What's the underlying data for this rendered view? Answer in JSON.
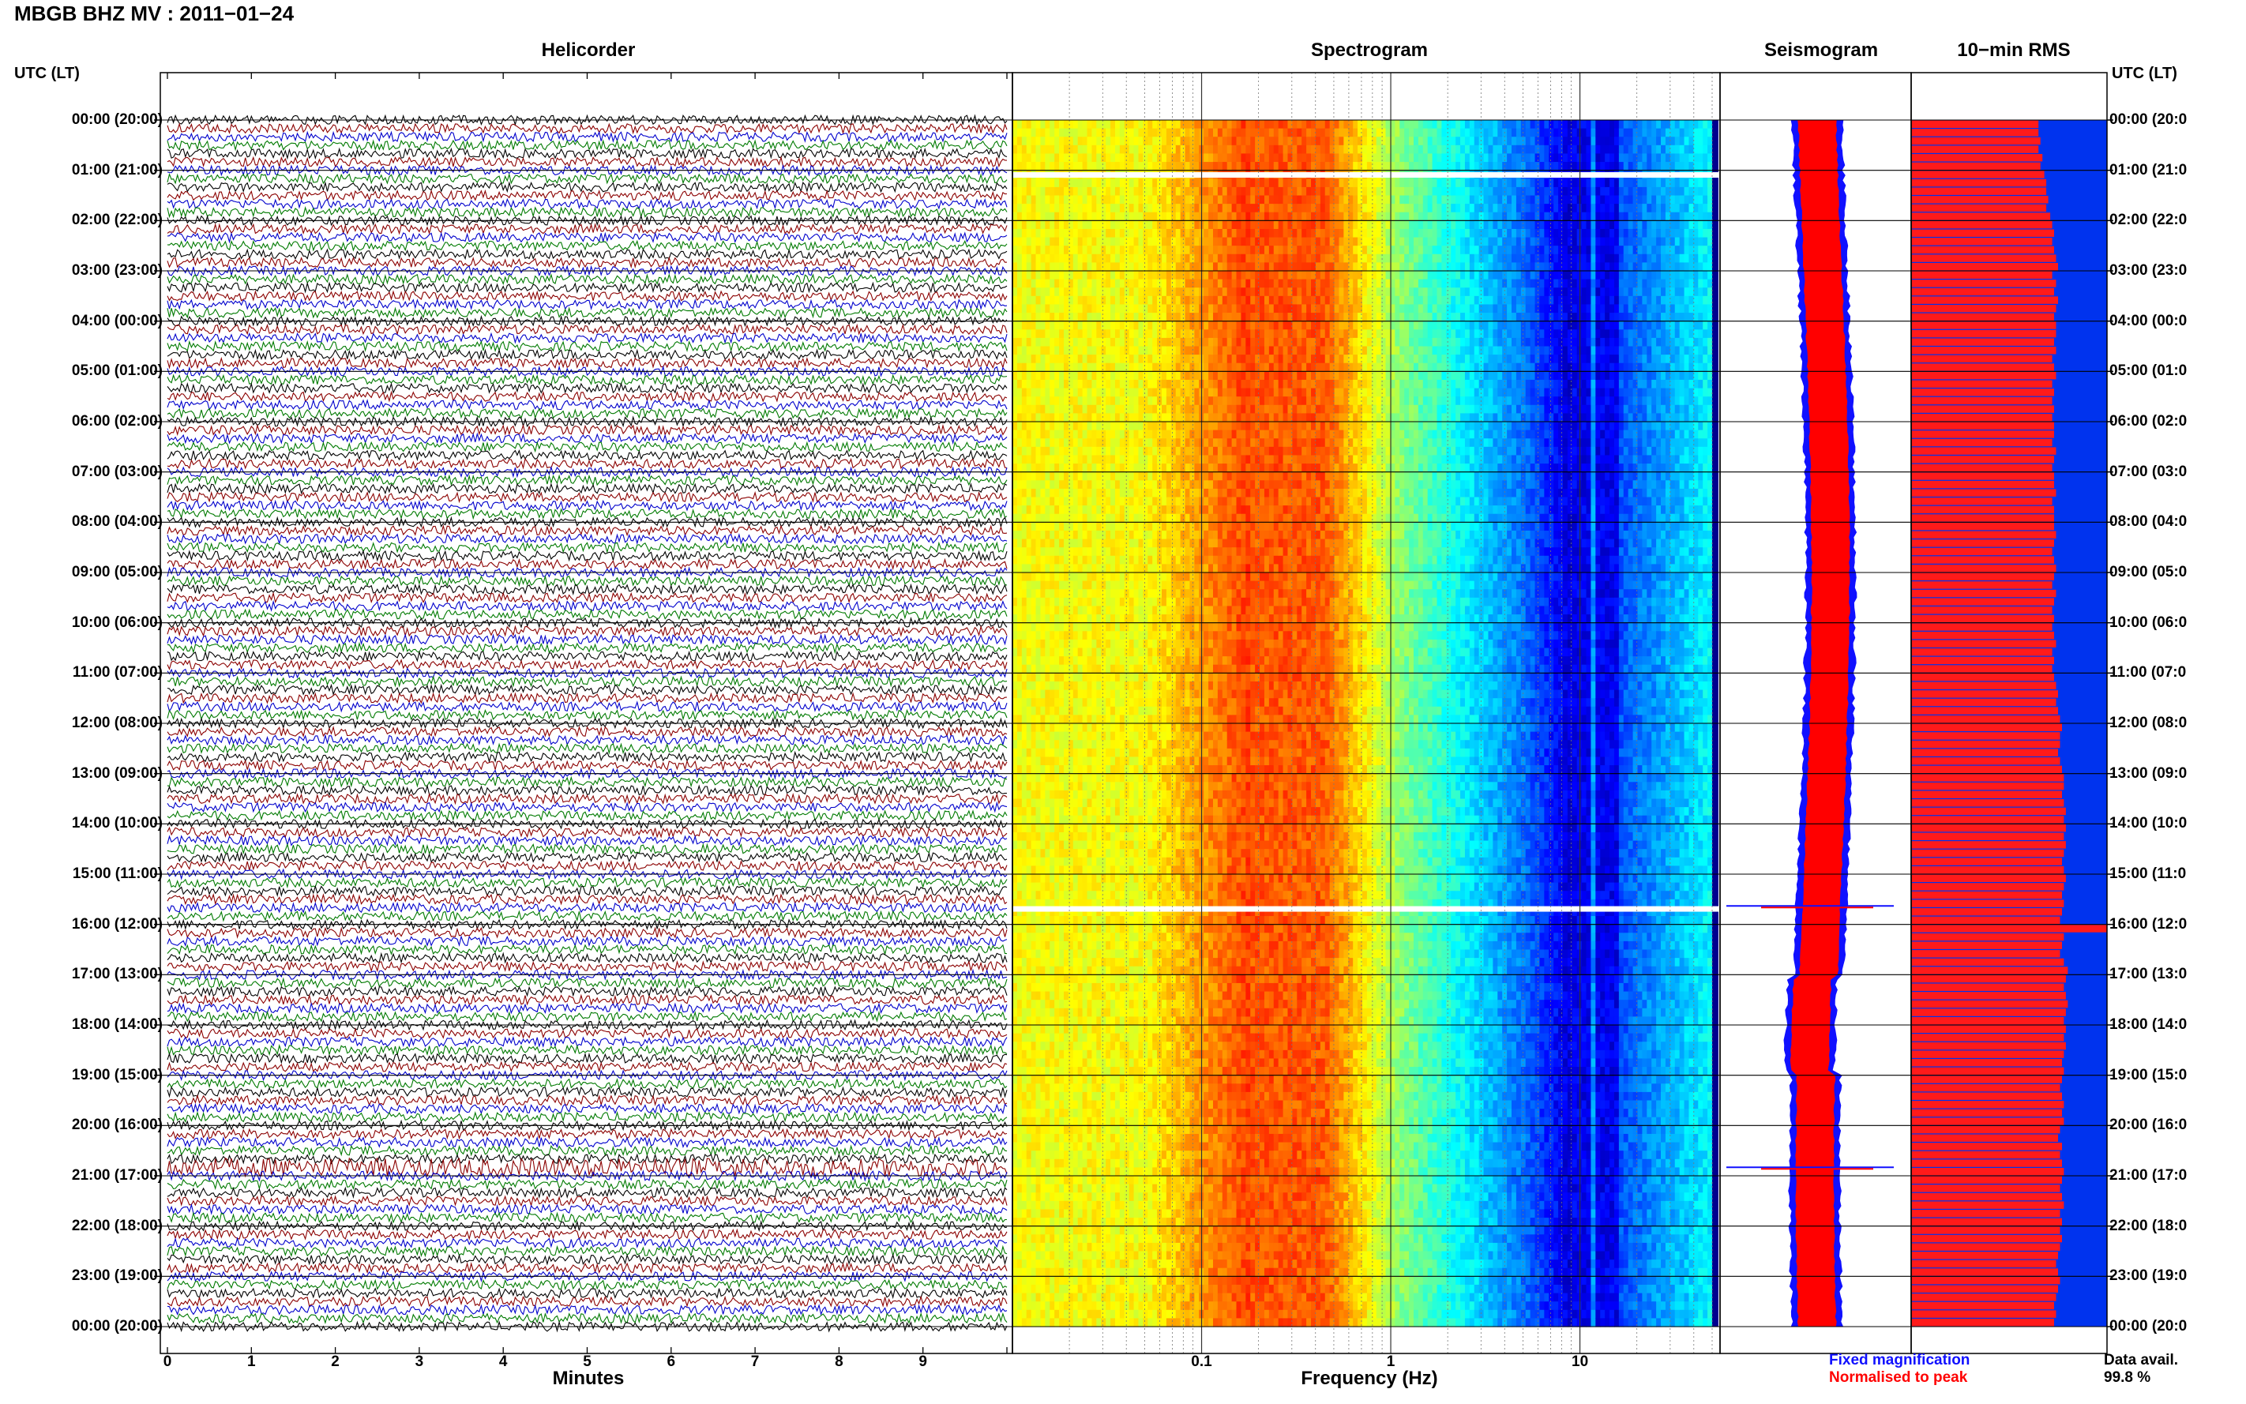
{
  "title": "MBGB BHZ MV : 2011−01−24",
  "utc_header": "UTC (LT)",
  "colors": {
    "black": "#000000",
    "red": "#8b0000",
    "blue": "#0000cc",
    "green": "#007a00",
    "seis_blue": "#1010ff",
    "seis_red": "#ff0000",
    "rms_blue": "#0033ee",
    "rms_red": "#ff1a1a"
  },
  "time_labels": [
    "00:00 (20:00)",
    "01:00 (21:00)",
    "02:00 (22:00)",
    "03:00 (23:00)",
    "04:00 (00:00)",
    "05:00 (01:00)",
    "06:00 (02:00)",
    "07:00 (03:00)",
    "08:00 (04:00)",
    "09:00 (05:00)",
    "10:00 (06:00)",
    "11:00 (07:00)",
    "12:00 (08:00)",
    "13:00 (09:00)",
    "14:00 (10:00)",
    "15:00 (11:00)",
    "16:00 (12:00)",
    "17:00 (13:00)",
    "18:00 (14:00)",
    "19:00 (15:00)",
    "20:00 (16:00)",
    "21:00 (17:00)",
    "22:00 (18:00)",
    "23:00 (19:00)",
    "00:00 (20:00)"
  ],
  "time_labels_right": [
    "00:00 (20:0",
    "01:00 (21:0",
    "02:00 (22:0",
    "03:00 (23:0",
    "04:00 (00:0",
    "05:00 (01:0",
    "06:00 (02:0",
    "07:00 (03:0",
    "08:00 (04:0",
    "09:00 (05:0",
    "10:00 (06:0",
    "11:00 (07:0",
    "12:00 (08:0",
    "13:00 (09:0",
    "14:00 (10:0",
    "15:00 (11:0",
    "16:00 (12:0",
    "17:00 (13:0",
    "18:00 (14:0",
    "19:00 (15:0",
    "20:00 (16:0",
    "21:00 (17:0",
    "22:00 (18:0",
    "23:00 (19:0",
    "00:00 (20:0"
  ],
  "chart_data": [
    {
      "type": "line",
      "title": "Helicorder",
      "xlabel": "Minutes",
      "xlim": [
        0,
        10
      ],
      "x_ticks": [
        "0",
        "1",
        "2",
        "3",
        "4",
        "5",
        "6",
        "7",
        "8",
        "9"
      ],
      "traces_per_hour": 6,
      "trace_colors_cycle": [
        "black",
        "red",
        "blue",
        "green"
      ],
      "y_range_hours": [
        0,
        24
      ],
      "events": [
        {
          "hour": 15.6,
          "note": "elevated amplitude trace"
        },
        {
          "hour": 20.8,
          "note": "elevated amplitude trace"
        }
      ]
    },
    {
      "type": "heatmap",
      "title": "Spectrogram",
      "xlabel": "Frequency (Hz)",
      "xscale": "log",
      "xlim": [
        0.01,
        50
      ],
      "x_ticks": [
        "0.1",
        "1",
        "10"
      ],
      "y_range_hours": [
        0,
        24
      ],
      "colormap": "jet",
      "energy_peak_hz": [
        0.2,
        0.4
      ],
      "data_gaps_hours": [
        1.1,
        15.7
      ]
    },
    {
      "type": "area",
      "title": "Seismogram",
      "y_range_hours": [
        0,
        24
      ],
      "series": [
        {
          "name": "Fixed magnification",
          "color": "seis_blue"
        },
        {
          "name": "Normalised to peak",
          "color": "seis_red"
        }
      ]
    },
    {
      "type": "bar",
      "title": "10−min RMS",
      "orientation": "horizontal",
      "bins_per_hour": 6,
      "y_range_hours": [
        0,
        24
      ],
      "relative_rms": [
        0.65,
        0.65,
        0.66,
        0.65,
        0.67,
        0.66,
        0.68,
        0.69,
        0.69,
        0.7,
        0.69,
        0.71,
        0.72,
        0.73,
        0.72,
        0.73,
        0.74,
        0.75,
        0.72,
        0.74,
        0.73,
        0.75,
        0.74,
        0.73,
        0.74,
        0.74,
        0.73,
        0.74,
        0.72,
        0.73,
        0.74,
        0.72,
        0.73,
        0.72,
        0.73,
        0.72,
        0.73,
        0.73,
        0.72,
        0.74,
        0.73,
        0.72,
        0.73,
        0.73,
        0.74,
        0.72,
        0.73,
        0.73,
        0.73,
        0.74,
        0.73,
        0.72,
        0.73,
        0.74,
        0.73,
        0.72,
        0.74,
        0.73,
        0.72,
        0.73,
        0.72,
        0.73,
        0.74,
        0.72,
        0.73,
        0.72,
        0.73,
        0.74,
        0.75,
        0.74,
        0.75,
        0.76,
        0.77,
        0.76,
        0.76,
        0.75,
        0.76,
        0.77,
        0.78,
        0.78,
        0.77,
        0.78,
        0.79,
        0.78,
        0.79,
        0.78,
        0.79,
        0.78,
        0.77,
        0.78,
        0.79,
        0.78,
        0.77,
        0.78,
        0.77,
        0.76,
        1.0,
        0.78,
        0.77,
        0.76,
        0.78,
        0.8,
        0.79,
        0.78,
        0.79,
        0.8,
        0.79,
        0.78,
        0.79,
        0.78,
        0.79,
        0.78,
        0.77,
        0.78,
        0.77,
        0.76,
        0.77,
        0.78,
        0.77,
        0.78,
        0.76,
        0.75,
        0.77,
        0.76,
        0.77,
        0.78,
        0.77,
        0.76,
        0.77,
        0.78,
        0.76,
        0.77,
        0.76,
        0.77,
        0.76,
        0.75,
        0.74,
        0.75,
        0.76,
        0.75,
        0.74,
        0.73,
        0.74,
        0.73
      ]
    }
  ],
  "legend": {
    "fixed": "Fixed magnification",
    "normalised": "Normalised to peak",
    "avail_label": "Data avail.",
    "avail_value": "99.8 %"
  }
}
